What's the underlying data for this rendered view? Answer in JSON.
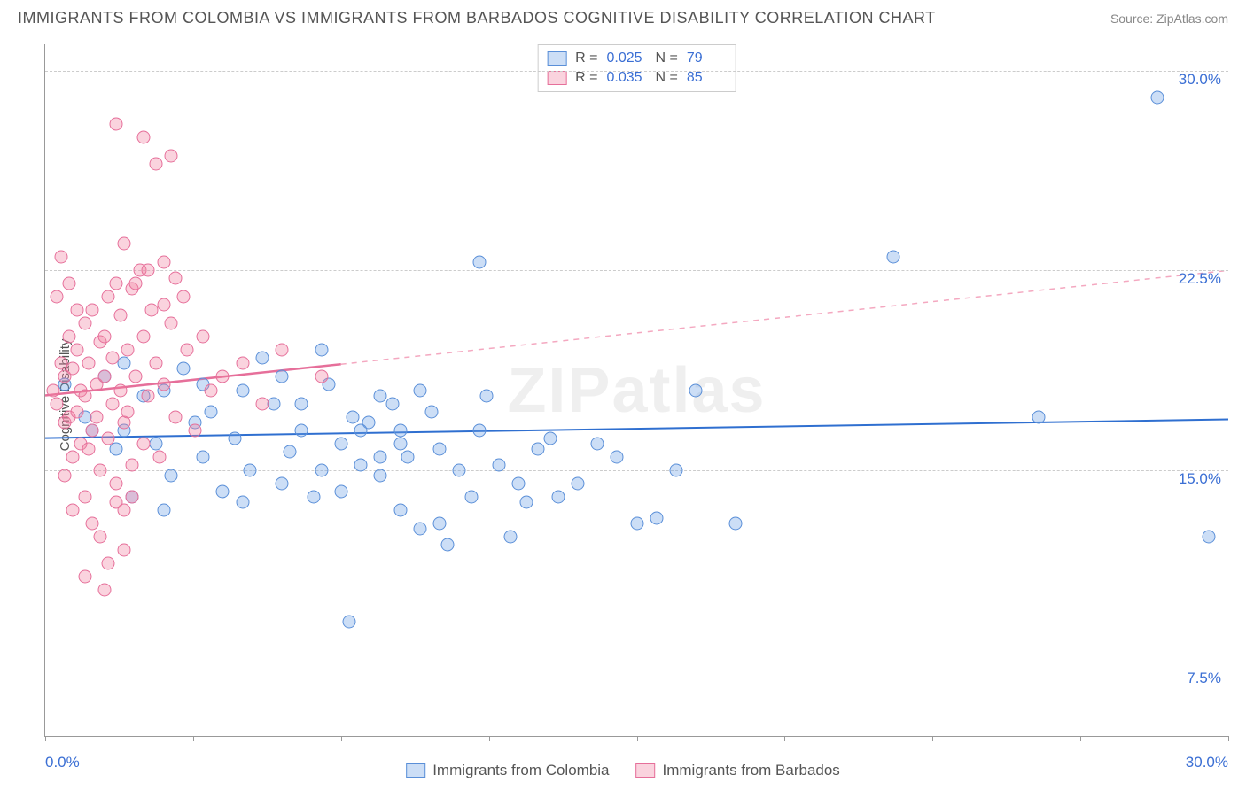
{
  "title": "IMMIGRANTS FROM COLOMBIA VS IMMIGRANTS FROM BARBADOS COGNITIVE DISABILITY CORRELATION CHART",
  "source_label": "Source:",
  "source_name": "ZipAtlas.com",
  "watermark": "ZIPatlas",
  "ylabel": "Cognitive Disability",
  "xaxis": {
    "min": 0,
    "max": 30,
    "min_label": "0.0%",
    "max_label": "30.0%",
    "tick_count": 9
  },
  "yaxis": {
    "ticks": [
      {
        "value": 7.5,
        "label": "7.5%"
      },
      {
        "value": 15.0,
        "label": "15.0%"
      },
      {
        "value": 22.5,
        "label": "22.5%"
      },
      {
        "value": 30.0,
        "label": "30.0%"
      }
    ],
    "data_min": 5,
    "data_max": 31
  },
  "series": [
    {
      "id": "colombia",
      "label": "Immigrants from Colombia",
      "color_fill": "rgba(110,160,230,0.35)",
      "color_stroke": "#5a8fd8",
      "marker_size": 15,
      "r_value": "0.025",
      "n_value": "79",
      "trend": {
        "y_start": 16.2,
        "y_end": 16.9,
        "solid_until_x": 30,
        "stroke": "#2f6fd0",
        "width": 2,
        "dash_stroke": "#2f6fd0"
      },
      "points": [
        [
          0.5,
          18.2
        ],
        [
          1.0,
          17.0
        ],
        [
          1.2,
          16.5
        ],
        [
          1.5,
          18.5
        ],
        [
          1.8,
          15.8
        ],
        [
          2.0,
          19.0
        ],
        [
          2.2,
          14.0
        ],
        [
          2.5,
          17.8
        ],
        [
          2.8,
          16.0
        ],
        [
          3.0,
          13.5
        ],
        [
          3.2,
          14.8
        ],
        [
          3.5,
          18.8
        ],
        [
          3.8,
          16.8
        ],
        [
          4.0,
          15.5
        ],
        [
          4.2,
          17.2
        ],
        [
          4.5,
          14.2
        ],
        [
          4.8,
          16.2
        ],
        [
          5.0,
          18.0
        ],
        [
          5.2,
          15.0
        ],
        [
          5.5,
          19.2
        ],
        [
          5.8,
          17.5
        ],
        [
          6.0,
          14.5
        ],
        [
          6.2,
          15.7
        ],
        [
          6.5,
          16.5
        ],
        [
          6.8,
          14.0
        ],
        [
          7.0,
          19.5
        ],
        [
          7.2,
          18.2
        ],
        [
          7.5,
          16.0
        ],
        [
          7.8,
          17.0
        ],
        [
          8.0,
          15.2
        ],
        [
          8.2,
          16.8
        ],
        [
          8.5,
          14.8
        ],
        [
          8.8,
          17.5
        ],
        [
          9.0,
          16.0
        ],
        [
          9.2,
          15.5
        ],
        [
          9.5,
          18.0
        ],
        [
          9.8,
          17.2
        ],
        [
          10.0,
          13.0
        ],
        [
          10.2,
          12.2
        ],
        [
          10.5,
          15.0
        ],
        [
          10.8,
          14.0
        ],
        [
          11.0,
          16.5
        ],
        [
          11.2,
          17.8
        ],
        [
          11.5,
          15.2
        ],
        [
          11.8,
          12.5
        ],
        [
          12.0,
          14.5
        ],
        [
          12.2,
          13.8
        ],
        [
          12.5,
          15.8
        ],
        [
          12.8,
          16.2
        ],
        [
          13.0,
          14.0
        ],
        [
          7.7,
          9.3
        ],
        [
          8.5,
          15.5
        ],
        [
          9.0,
          13.5
        ],
        [
          9.5,
          12.8
        ],
        [
          10.0,
          15.8
        ],
        [
          11.0,
          22.8
        ],
        [
          13.5,
          14.5
        ],
        [
          14.0,
          16.0
        ],
        [
          14.5,
          15.5
        ],
        [
          15.0,
          13.0
        ],
        [
          15.5,
          13.2
        ],
        [
          16.0,
          15.0
        ],
        [
          16.5,
          18.0
        ],
        [
          17.5,
          13.0
        ],
        [
          21.5,
          23.0
        ],
        [
          25.2,
          17.0
        ],
        [
          28.2,
          29.0
        ],
        [
          29.5,
          12.5
        ],
        [
          2.0,
          16.5
        ],
        [
          3.0,
          18.0
        ],
        [
          4.0,
          18.2
        ],
        [
          5.0,
          13.8
        ],
        [
          6.0,
          18.5
        ],
        [
          6.5,
          17.5
        ],
        [
          7.0,
          15.0
        ],
        [
          7.5,
          14.2
        ],
        [
          8.0,
          16.5
        ],
        [
          8.5,
          17.8
        ],
        [
          9.0,
          16.5
        ]
      ]
    },
    {
      "id": "barbados",
      "label": "Immigrants from Barbados",
      "color_fill": "rgba(240,130,160,0.35)",
      "color_stroke": "#e66f9a",
      "marker_size": 15,
      "r_value": "0.035",
      "n_value": "85",
      "trend": {
        "y_start": 17.8,
        "y_end": 22.5,
        "solid_until_x": 7.5,
        "stroke": "#e66f9a",
        "width": 2.5,
        "dash_stroke": "#f4a8c0"
      },
      "points": [
        [
          0.2,
          18.0
        ],
        [
          0.3,
          17.5
        ],
        [
          0.4,
          19.0
        ],
        [
          0.5,
          16.8
        ],
        [
          0.5,
          18.5
        ],
        [
          0.6,
          17.0
        ],
        [
          0.6,
          20.0
        ],
        [
          0.7,
          15.5
        ],
        [
          0.7,
          18.8
        ],
        [
          0.8,
          17.2
        ],
        [
          0.8,
          19.5
        ],
        [
          0.9,
          16.0
        ],
        [
          0.9,
          18.0
        ],
        [
          1.0,
          17.8
        ],
        [
          1.0,
          20.5
        ],
        [
          1.1,
          15.8
        ],
        [
          1.1,
          19.0
        ],
        [
          1.2,
          21.0
        ],
        [
          1.2,
          16.5
        ],
        [
          1.3,
          18.2
        ],
        [
          1.3,
          17.0
        ],
        [
          1.4,
          19.8
        ],
        [
          1.4,
          15.0
        ],
        [
          1.5,
          18.5
        ],
        [
          1.5,
          20.0
        ],
        [
          1.6,
          16.2
        ],
        [
          1.6,
          21.5
        ],
        [
          1.7,
          17.5
        ],
        [
          1.7,
          19.2
        ],
        [
          1.8,
          22.0
        ],
        [
          1.8,
          14.5
        ],
        [
          1.9,
          18.0
        ],
        [
          1.9,
          20.8
        ],
        [
          2.0,
          16.8
        ],
        [
          2.0,
          13.5
        ],
        [
          2.1,
          17.2
        ],
        [
          2.1,
          19.5
        ],
        [
          2.2,
          21.8
        ],
        [
          2.2,
          15.2
        ],
        [
          2.3,
          18.5
        ],
        [
          2.4,
          22.5
        ],
        [
          2.5,
          16.0
        ],
        [
          2.5,
          20.0
        ],
        [
          2.6,
          17.8
        ],
        [
          2.7,
          21.0
        ],
        [
          2.8,
          19.0
        ],
        [
          2.9,
          15.5
        ],
        [
          3.0,
          18.2
        ],
        [
          3.0,
          22.8
        ],
        [
          3.2,
          20.5
        ],
        [
          3.3,
          17.0
        ],
        [
          3.5,
          21.5
        ],
        [
          3.6,
          19.5
        ],
        [
          3.8,
          16.5
        ],
        [
          4.0,
          20.0
        ],
        [
          4.2,
          18.0
        ],
        [
          0.4,
          23.0
        ],
        [
          0.6,
          22.0
        ],
        [
          0.8,
          21.0
        ],
        [
          1.0,
          14.0
        ],
        [
          1.2,
          13.0
        ],
        [
          1.4,
          12.5
        ],
        [
          1.6,
          11.5
        ],
        [
          1.8,
          13.8
        ],
        [
          2.0,
          12.0
        ],
        [
          2.2,
          14.0
        ],
        [
          2.5,
          27.5
        ],
        [
          2.8,
          26.5
        ],
        [
          3.2,
          26.8
        ],
        [
          1.8,
          28.0
        ],
        [
          1.0,
          11.0
        ],
        [
          1.5,
          10.5
        ],
        [
          2.0,
          23.5
        ],
        [
          2.3,
          22.0
        ],
        [
          2.6,
          22.5
        ],
        [
          3.0,
          21.2
        ],
        [
          3.3,
          22.2
        ],
        [
          0.3,
          21.5
        ],
        [
          0.5,
          14.8
        ],
        [
          0.7,
          13.5
        ],
        [
          4.5,
          18.5
        ],
        [
          5.0,
          19.0
        ],
        [
          5.5,
          17.5
        ],
        [
          6.0,
          19.5
        ],
        [
          7.0,
          18.5
        ]
      ]
    }
  ],
  "legend_top_labels": {
    "r": "R =",
    "n": "N ="
  }
}
